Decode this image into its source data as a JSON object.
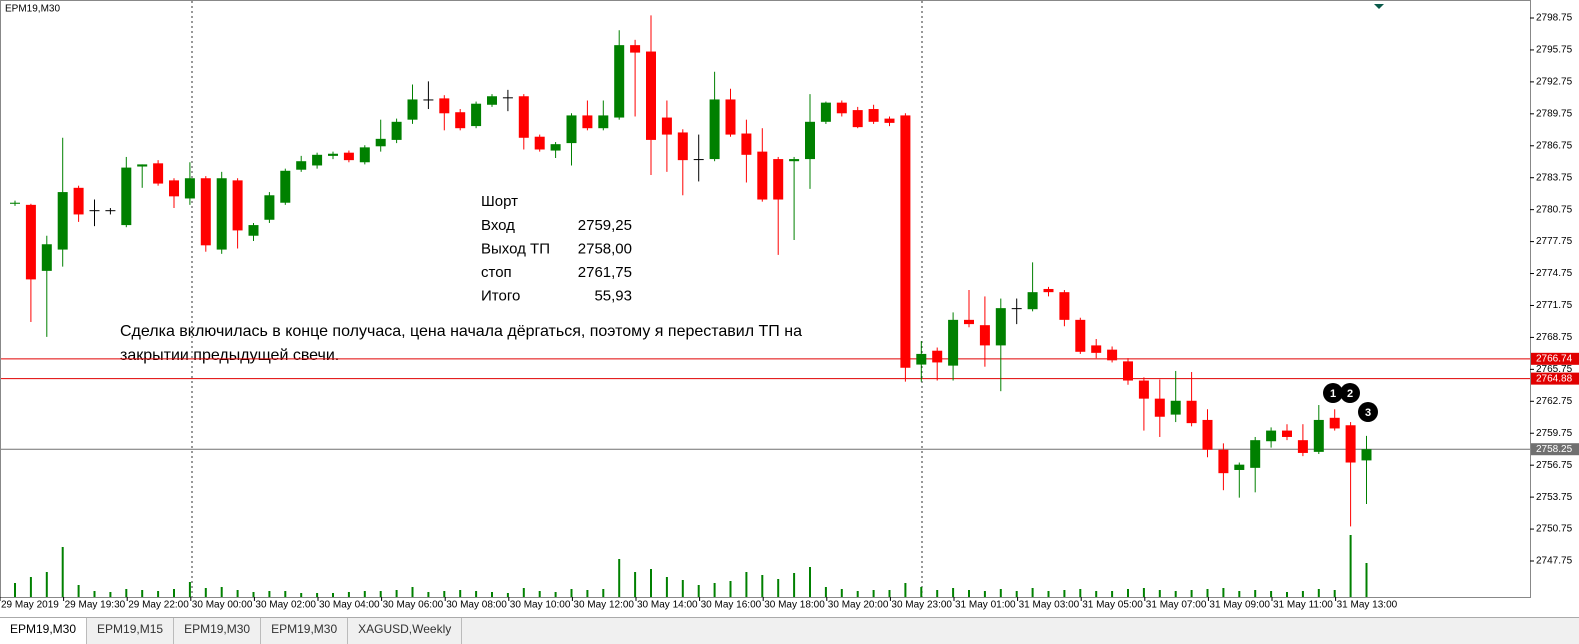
{
  "chart_data": {
    "type": "candlestick",
    "title": "EPM19,M30",
    "categories": [
      "29 May 2019",
      null,
      null,
      null,
      "29 May 19:30",
      null,
      null,
      null,
      "29 May 22:00",
      null,
      null,
      null,
      "30 May 00:00",
      null,
      null,
      null,
      "30 May 02:00",
      null,
      null,
      null,
      "30 May 04:00",
      null,
      null,
      null,
      "30 May 06:00",
      null,
      null,
      null,
      "30 May 08:00",
      null,
      null,
      null,
      "30 May 10:00",
      null,
      null,
      null,
      "30 May 12:00",
      null,
      null,
      null,
      "30 May 14:00",
      null,
      null,
      null,
      "30 May 16:00",
      null,
      null,
      null,
      "30 May 18:00",
      null,
      null,
      null,
      "30 May 20:00",
      null,
      null,
      null,
      "30 May 23:00",
      null,
      null,
      null,
      "31 May 01:00",
      null,
      null,
      null,
      "31 May 03:00",
      null,
      null,
      null,
      "31 May 05:00",
      null,
      null,
      null,
      "31 May 07:00",
      null,
      null,
      null,
      "31 May 09:00",
      null,
      null,
      null,
      "31 May 11:00",
      null,
      null,
      null,
      "31 May 13:00",
      null
    ],
    "open": [
      2781.3,
      2781.2,
      2775.0,
      2777.0,
      2782.8,
      2780.7,
      2780.7,
      2779.3,
      2784.8,
      2785.1,
      2783.5,
      2781.8,
      2783.7,
      2777.0,
      2783.5,
      2778.3,
      2779.8,
      2781.4,
      2784.5,
      2784.9,
      2785.8,
      2786.1,
      2785.2,
      2786.7,
      2787.3,
      2789.2,
      2791.1,
      2791.2,
      2789.9,
      2788.6,
      2790.6,
      2791.3,
      2791.4,
      2787.6,
      2786.3,
      2787.0,
      2789.6,
      2788.4,
      2789.4,
      2796.2,
      2795.6,
      2789.4,
      2788.0,
      2785.5,
      2785.5,
      2791.1,
      2787.9,
      2786.2,
      2785.5,
      2785.3,
      2785.5,
      2789.0,
      2790.8,
      2790.1,
      2790.2,
      2789.3,
      2789.6,
      2766.2,
      2767.5,
      2766.1,
      2770.4,
      2769.9,
      2768.0,
      2771.5,
      2771.4,
      2773.3,
      2773.0,
      2770.4,
      2768.0,
      2767.6,
      2766.5,
      2764.7,
      2763.0,
      2761.5,
      2762.8,
      2761.0,
      2758.2,
      2756.3,
      2756.5,
      2759.0,
      2760.0,
      2759.1,
      2758.0,
      2761.2,
      2760.5,
      2757.2
    ],
    "high": [
      2781.6,
      2781.3,
      2778.3,
      2787.5,
      2783.0,
      2781.7,
      2780.9,
      2785.7,
      2785.0,
      2785.4,
      2783.7,
      2785.2,
      2783.9,
      2784.3,
      2783.7,
      2779.5,
      2782.4,
      2784.6,
      2785.8,
      2786.1,
      2786.2,
      2786.3,
      2786.8,
      2789.2,
      2789.3,
      2792.5,
      2792.8,
      2791.5,
      2790.2,
      2790.9,
      2791.6,
      2792.0,
      2791.6,
      2787.8,
      2787.1,
      2789.8,
      2791.0,
      2791.0,
      2797.6,
      2796.7,
      2799.0,
      2791.0,
      2788.3,
      2787.8,
      2793.7,
      2792.1,
      2789.2,
      2788.4,
      2785.7,
      2785.7,
      2791.6,
      2790.9,
      2791.0,
      2790.4,
      2790.6,
      2789.5,
      2789.8,
      2768.4,
      2767.8,
      2771.1,
      2773.2,
      2772.6,
      2772.4,
      2772.4,
      2775.8,
      2773.5,
      2773.2,
      2770.6,
      2768.6,
      2767.9,
      2766.8,
      2765.0,
      2764.8,
      2765.6,
      2765.5,
      2762.0,
      2758.8,
      2757.0,
      2759.4,
      2760.3,
      2760.6,
      2760.6,
      2762.4,
      2762.0,
      2760.8,
      2759.5
    ],
    "low": [
      2781.1,
      2770.2,
      2768.8,
      2775.4,
      2779.6,
      2779.2,
      2780.3,
      2779.1,
      2782.8,
      2783.0,
      2780.9,
      2781.2,
      2776.8,
      2776.6,
      2777.1,
      2777.8,
      2779.5,
      2781.2,
      2784.3,
      2784.6,
      2785.5,
      2785.2,
      2785.0,
      2786.2,
      2787.0,
      2788.8,
      2790.2,
      2788.2,
      2788.2,
      2788.4,
      2790.4,
      2790.0,
      2786.4,
      2786.2,
      2785.6,
      2784.9,
      2788.2,
      2788.2,
      2789.2,
      2789.5,
      2784.0,
      2784.3,
      2782.1,
      2783.4,
      2785.3,
      2787.6,
      2783.3,
      2781.5,
      2776.5,
      2777.9,
      2782.7,
      2788.8,
      2789.5,
      2788.4,
      2788.8,
      2788.6,
      2764.6,
      2764.6,
      2764.7,
      2764.7,
      2769.7,
      2766.0,
      2763.7,
      2770.0,
      2771.2,
      2772.6,
      2769.8,
      2767.2,
      2766.8,
      2766.4,
      2764.3,
      2760.0,
      2759.4,
      2760.8,
      2760.4,
      2757.5,
      2754.4,
      2753.7,
      2754.2,
      2758.4,
      2759.1,
      2757.6,
      2757.8,
      2760.0,
      2751.0,
      2753.1
    ],
    "close": [
      2781.4,
      2774.2,
      2777.5,
      2782.4,
      2780.3,
      2780.7,
      2780.7,
      2784.7,
      2785.0,
      2783.2,
      2782.0,
      2783.7,
      2777.4,
      2783.7,
      2778.8,
      2779.3,
      2782.1,
      2784.4,
      2785.3,
      2785.9,
      2786.0,
      2785.4,
      2786.6,
      2787.4,
      2789.0,
      2791.1,
      2791.1,
      2789.8,
      2788.4,
      2790.7,
      2791.4,
      2791.3,
      2787.5,
      2786.4,
      2786.9,
      2789.6,
      2788.4,
      2789.6,
      2796.2,
      2795.5,
      2787.3,
      2787.8,
      2785.4,
      2785.5,
      2791.1,
      2787.8,
      2785.9,
      2781.7,
      2781.7,
      2785.5,
      2789.0,
      2790.8,
      2789.8,
      2788.5,
      2789.0,
      2788.9,
      2765.9,
      2767.2,
      2766.4,
      2770.4,
      2770.0,
      2768.0,
      2771.5,
      2771.5,
      2773.0,
      2773.0,
      2770.4,
      2767.4,
      2767.3,
      2766.6,
      2764.7,
      2763.0,
      2761.3,
      2762.8,
      2760.7,
      2758.2,
      2756.0,
      2756.8,
      2759.1,
      2760.0,
      2759.4,
      2757.9,
      2761.0,
      2760.2,
      2757.0,
      2758.25
    ],
    "volumes": [
      14,
      20,
      25,
      50,
      12,
      6,
      5,
      8,
      7,
      6,
      8,
      15,
      9,
      10,
      7,
      5,
      6,
      6,
      4,
      4,
      4,
      5,
      6,
      6,
      7,
      10,
      5,
      6,
      7,
      6,
      5,
      4,
      9,
      6,
      5,
      8,
      7,
      8,
      38,
      25,
      28,
      20,
      17,
      12,
      14,
      16,
      25,
      22,
      18,
      24,
      30,
      10,
      8,
      6,
      7,
      7,
      14,
      10,
      7,
      9,
      7,
      6,
      8,
      6,
      9,
      6,
      7,
      8,
      6,
      6,
      8,
      9,
      7,
      6,
      7,
      8,
      9,
      6,
      7,
      6,
      5,
      6,
      8,
      7,
      62,
      34
    ],
    "up_color": "#008000",
    "down_color": "#ff0000",
    "volume_color": "#008000",
    "ylim": [
      2744.37,
      2800.44
    ],
    "yticks": [
      2798.75,
      2795.75,
      2792.75,
      2789.75,
      2786.75,
      2783.75,
      2780.75,
      2777.75,
      2774.75,
      2771.75,
      2768.75,
      2765.75,
      2762.75,
      2759.75,
      2756.75,
      2753.75,
      2750.75,
      2747.75
    ],
    "levels": [
      {
        "value": 2766.74,
        "color": "#e00000"
      },
      {
        "value": 2764.88,
        "color": "#e00000"
      },
      {
        "value": 2758.25,
        "color": "#707070"
      }
    ],
    "markers": [
      {
        "label": "1"
      },
      {
        "label": "2"
      },
      {
        "label": "3"
      }
    ]
  },
  "trade_note": {
    "title": "Шорт",
    "rows": [
      [
        "Вход",
        "2759,25"
      ],
      [
        "Выход ТП",
        "2758,00"
      ],
      [
        "стоп",
        "2761,75"
      ],
      [
        "Итого",
        "55,93"
      ]
    ]
  },
  "comment": [
    "Сделка включилась в конце получаса, цена начала дёргаться, поэтому я переставил ТП на",
    "закрытии предыдущей свечи."
  ],
  "tabs": [
    "EPM19,M30",
    "EPM19,M15",
    "EPM19,M30",
    "EPM19,M30",
    "XAGUSD,Weekly"
  ]
}
